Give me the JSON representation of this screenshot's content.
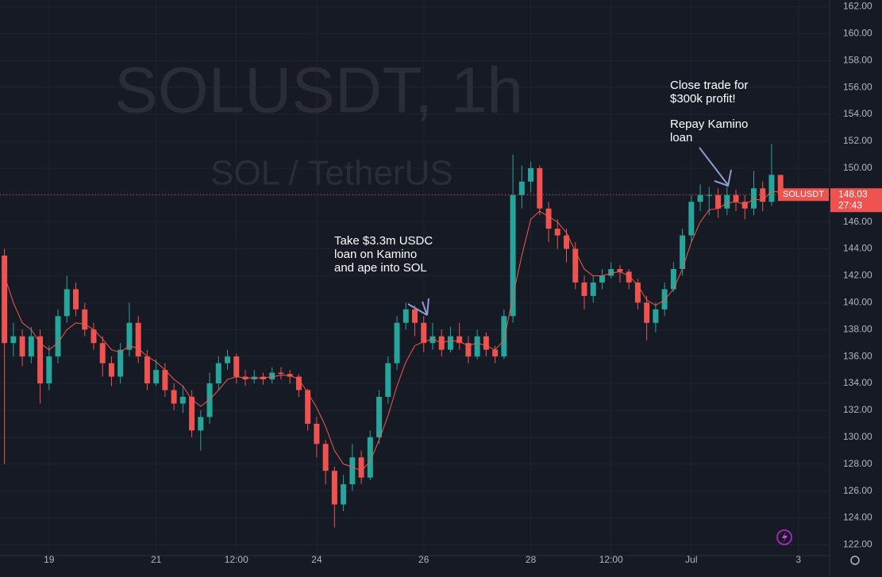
{
  "chart_data": {
    "type": "candlestick",
    "title": "SOLUSDT, 1h",
    "subtitle": "SOL / TetherUS",
    "symbol": "SOLUSDT",
    "last_price": 148.03,
    "countdown": "27:43",
    "up_color": "#26a69a",
    "down_color": "#ef5350",
    "ma_color": "#f05a4a",
    "grid": true,
    "annotations": [
      [
        "Take $3.3m USDC",
        "loan on Kamino",
        "and ape into SOL"
      ],
      [
        "Close trade for",
        "$300k profit!"
      ],
      [
        "Repay Kamino",
        "loan"
      ]
    ],
    "x": [
      -20,
      -16,
      -12,
      -8,
      -4,
      0,
      4,
      8,
      12,
      16,
      20,
      24,
      28,
      32,
      36,
      40,
      44,
      48,
      52,
      56,
      60,
      64,
      68,
      72,
      76,
      80,
      84,
      88,
      92,
      96,
      100,
      104,
      108,
      112,
      116,
      120,
      124,
      128,
      132,
      136,
      140,
      144,
      148,
      152,
      156,
      160,
      164,
      168,
      172,
      176,
      180,
      184,
      188,
      192,
      196,
      200,
      204,
      208,
      212,
      216,
      220,
      224,
      228,
      232,
      236,
      240,
      244,
      248,
      252,
      256,
      260,
      264,
      268,
      272,
      276,
      280,
      284,
      288,
      292,
      296,
      300,
      304,
      308,
      312,
      316,
      320,
      324,
      328
    ],
    "open": [
      143.5,
      137,
      137.5,
      136,
      137.5,
      134,
      136,
      139,
      141,
      139.5,
      138,
      137,
      135.5,
      134.5,
      136.5,
      138.5,
      136,
      134,
      135,
      133.5,
      132.5,
      133,
      130.5,
      131.5,
      134,
      135.5,
      136,
      134.5,
      134.3,
      134.5,
      134.3,
      134.8,
      134.7,
      134.5,
      133.5,
      131,
      129.5,
      127.5,
      125,
      126.5,
      128.5,
      127,
      130,
      133,
      135.5,
      138.5,
      139.5,
      138.5,
      137,
      137.5,
      136.5,
      137.5,
      137,
      136,
      137.5,
      136.5,
      136,
      139,
      148,
      149,
      150,
      147,
      145.5,
      145,
      144,
      141.5,
      140.5,
      141.5,
      142,
      142.5,
      142.3,
      141.5,
      140,
      138.5,
      139.5,
      141,
      142.5,
      145,
      147.5,
      148,
      148,
      147,
      148,
      147.5,
      147,
      148.5,
      147.5,
      149.5
    ],
    "high": [
      144,
      138.5,
      138,
      138.2,
      138,
      136.8,
      139.5,
      142,
      141.5,
      140,
      138.5,
      137.5,
      136,
      137,
      140,
      139,
      136.5,
      135.8,
      135.5,
      134,
      133.8,
      133.5,
      132,
      134.8,
      136,
      136.5,
      136.2,
      135,
      135,
      134.8,
      135.2,
      135.2,
      135,
      134.7,
      133.6,
      131.5,
      129.8,
      127.8,
      127.2,
      129.5,
      129,
      130.5,
      133.5,
      136,
      139,
      140,
      139.8,
      139,
      138.5,
      138,
      138.2,
      138.5,
      137.5,
      138,
      137.8,
      136.8,
      139.5,
      151,
      150.2,
      150.5,
      150.2,
      147.5,
      146.2,
      145.5,
      144.5,
      142,
      142,
      142.5,
      143,
      142.8,
      142.5,
      141.8,
      140.5,
      140,
      141.5,
      143,
      145.5,
      148,
      148.8,
      148.6,
      148.5,
      148.6,
      148.4,
      148,
      149.8,
      149,
      151.8,
      149.5
    ],
    "low": [
      128,
      136,
      135.3,
      135.5,
      132.5,
      133.5,
      135.5,
      138.5,
      139,
      137.5,
      136.5,
      134.5,
      133.8,
      134,
      136,
      135.5,
      133.5,
      133.8,
      133,
      132,
      131.8,
      130,
      129,
      131,
      133.5,
      135,
      134,
      133.8,
      134,
      133.9,
      134,
      134.3,
      134,
      133,
      130.5,
      128.5,
      126.5,
      123.3,
      124.5,
      126,
      126.5,
      126.8,
      129.5,
      132.5,
      135,
      138,
      137.5,
      136.3,
      136.5,
      136,
      136.3,
      136.5,
      135.5,
      135.8,
      136,
      135.5,
      135.8,
      138.5,
      147,
      148.2,
      146.5,
      144.5,
      144,
      143,
      141,
      139.5,
      140,
      141,
      141.8,
      141.5,
      141,
      139.5,
      137.2,
      137.8,
      139,
      140.8,
      142,
      144.5,
      146.8,
      146.5,
      146.3,
      146.5,
      146.8,
      146.2,
      146.5,
      146.8,
      147.2,
      147.8
    ],
    "close": [
      137,
      137.5,
      136,
      137.5,
      134,
      136,
      139,
      141,
      139.5,
      138,
      137,
      135.5,
      134.5,
      136.5,
      138.5,
      136,
      134,
      135,
      133.5,
      132.5,
      133,
      130.5,
      131.5,
      134,
      135.5,
      136,
      134.5,
      134.3,
      134.5,
      134.3,
      134.8,
      134.7,
      134.5,
      133.5,
      131,
      129.5,
      127.5,
      125,
      126.5,
      128.5,
      127,
      130,
      133,
      135.5,
      138.5,
      139.5,
      138.5,
      137,
      137.5,
      136.5,
      137.5,
      137,
      136,
      137.5,
      136.5,
      136,
      139,
      148,
      149,
      150,
      147,
      145.5,
      145,
      144,
      141.5,
      140.5,
      141.5,
      142,
      142.5,
      142.3,
      141.5,
      140,
      138.5,
      139.5,
      141,
      142.5,
      145,
      147.5,
      148,
      148,
      147,
      148,
      147.5,
      147,
      148.5,
      147.5,
      149.5,
      148.03
    ],
    "ma": [
      142,
      140,
      138.5,
      138,
      137,
      136.5,
      137,
      138,
      138.5,
      138.4,
      138,
      137.3,
      136.5,
      136.3,
      136.8,
      136.6,
      136,
      135.6,
      135,
      134.3,
      133.8,
      132.8,
      132.3,
      132.8,
      133.5,
      134.3,
      134.5,
      134.4,
      134.4,
      134.4,
      134.5,
      134.6,
      134.6,
      134.3,
      133.3,
      132.2,
      130.8,
      129,
      128,
      127.8,
      127.5,
      128.2,
      129.8,
      131.6,
      133.8,
      135.6,
      136.8,
      137.1,
      137.3,
      137,
      137.2,
      137.1,
      136.8,
      137,
      136.8,
      136.5,
      137.2,
      140.5,
      143.5,
      146.2,
      146.8,
      146.4,
      146,
      145.2,
      143.8,
      142.5,
      142,
      142,
      142.2,
      142.3,
      142,
      141.3,
      140.2,
      139.8,
      140.2,
      141,
      142.5,
      144.5,
      146,
      146.9,
      147,
      147.4,
      147.5,
      147.3,
      147.7,
      147.6,
      148.3,
      148.2
    ],
    "xlim": [
      -22,
      350
    ],
    "xticks": [
      {
        "value": 0,
        "label": "19"
      },
      {
        "value": 48,
        "label": "21"
      },
      {
        "value": 84,
        "label": "12:00"
      },
      {
        "value": 120,
        "label": "24"
      },
      {
        "value": 168,
        "label": "26"
      },
      {
        "value": 216,
        "label": "28"
      },
      {
        "value": 252,
        "label": "12:00"
      },
      {
        "value": 288,
        "label": "Jul"
      },
      {
        "value": 336,
        "label": "3"
      }
    ],
    "ylim": [
      121.2,
      162.5
    ],
    "yticks": [
      {
        "value": 122,
        "label": "122.00"
      },
      {
        "value": 124,
        "label": "124.00"
      },
      {
        "value": 126,
        "label": "126.00"
      },
      {
        "value": 128,
        "label": "128.00"
      },
      {
        "value": 130,
        "label": "130.00"
      },
      {
        "value": 132,
        "label": "132.00"
      },
      {
        "value": 134,
        "label": "134.00"
      },
      {
        "value": 136,
        "label": "136.00"
      },
      {
        "value": 138,
        "label": "138.00"
      },
      {
        "value": 140,
        "label": "140.00"
      },
      {
        "value": 142,
        "label": "142.00"
      },
      {
        "value": 144,
        "label": "144.00"
      },
      {
        "value": 146,
        "label": "146.00"
      },
      {
        "value": 148,
        "label": "148.00"
      },
      {
        "value": 150,
        "label": "150.00"
      },
      {
        "value": 152,
        "label": "152.00"
      },
      {
        "value": 154,
        "label": "154.00"
      },
      {
        "value": 156,
        "label": "156.00"
      },
      {
        "value": 158,
        "label": "158.00"
      },
      {
        "value": 160,
        "label": "160.00"
      },
      {
        "value": 162,
        "label": "162.00"
      }
    ]
  }
}
